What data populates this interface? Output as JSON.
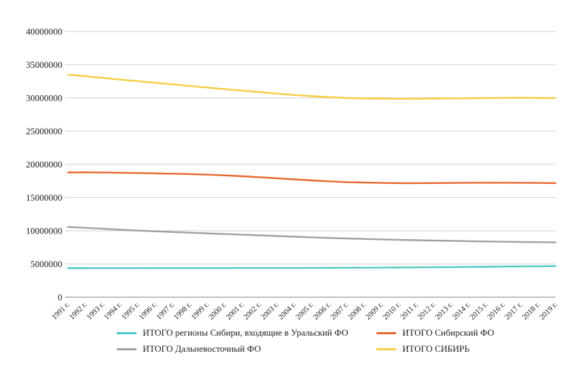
{
  "chart_data": {
    "type": "line",
    "title": "",
    "xlabel": "",
    "ylabel": "",
    "ylim": [
      0,
      40000000
    ],
    "grid": true,
    "legend_position": "bottom",
    "y_ticks": [
      0,
      5000000,
      10000000,
      15000000,
      20000000,
      25000000,
      30000000,
      35000000,
      40000000
    ],
    "y_tick_labels": [
      "0",
      "5000000",
      "10000000",
      "15000000",
      "20000000",
      "25000000",
      "30000000",
      "35000000",
      "40000000"
    ],
    "categories": [
      "1991 г.",
      "1992 г.",
      "1993 г.",
      "1994 г.",
      "1995 г.",
      "1996 г.",
      "1997 г.",
      "1998 г.",
      "1999 г.",
      "2000 г.",
      "2001 г.",
      "2002 г.",
      "2003 г.",
      "2004 г.",
      "2005 г.",
      "2006 г.",
      "2007 г.",
      "2008 г.",
      "2009 г.",
      "2010 г.",
      "2011 г.",
      "2012 г.",
      "2013 г.",
      "2014 г.",
      "2015 г.",
      "2016 г.",
      "2017 г.",
      "2018 г.",
      "2019 г."
    ],
    "series": [
      {
        "name": "ИТОГО регионы Сибири, входящие в Уральский ФО",
        "color": "#4EC9C5",
        "values": [
          4370000,
          4370000,
          4375000,
          4380000,
          4380000,
          4385000,
          4385000,
          4390000,
          4390000,
          4390000,
          4395000,
          4395000,
          4400000,
          4400000,
          4410000,
          4420000,
          4430000,
          4440000,
          4455000,
          4470000,
          4490000,
          4510000,
          4530000,
          4555000,
          4580000,
          4610000,
          4630000,
          4650000,
          4670000
        ]
      },
      {
        "name": "ИТОГО Сибирский ФО",
        "color": "#E8662D",
        "values": [
          18780000,
          18790000,
          18770000,
          18730000,
          18690000,
          18640000,
          18590000,
          18530000,
          18450000,
          18340000,
          18210000,
          18060000,
          17900000,
          17740000,
          17580000,
          17440000,
          17330000,
          17250000,
          17200000,
          17170000,
          17170000,
          17180000,
          17200000,
          17220000,
          17230000,
          17230000,
          17220000,
          17200000,
          17170000
        ]
      },
      {
        "name": "ИТОГО Дальневосточный ФО",
        "color": "#A0A0A0",
        "values": [
          10570000,
          10440000,
          10300000,
          10160000,
          10030000,
          9920000,
          9810000,
          9710000,
          9610000,
          9510000,
          9410000,
          9310000,
          9210000,
          9110000,
          9010000,
          8920000,
          8840000,
          8770000,
          8700000,
          8640000,
          8580000,
          8530000,
          8480000,
          8430000,
          8390000,
          8350000,
          8310000,
          8280000,
          8250000
        ]
      },
      {
        "name": "ИТОГО СИБИРЬ",
        "color": "#F9CB40",
        "values": [
          33500000,
          33260000,
          33010000,
          32760000,
          32520000,
          32280000,
          32040000,
          31800000,
          31560000,
          31330000,
          31100000,
          30870000,
          30650000,
          30440000,
          30260000,
          30110000,
          29990000,
          29920000,
          29890000,
          29870000,
          29880000,
          29900000,
          29930000,
          29960000,
          29990000,
          30010000,
          30020000,
          30000000,
          29980000
        ]
      }
    ],
    "colors": {
      "gridline": "#D8D8D8",
      "axis_line": "#9B9B9B",
      "tick_text": "#1A1A1A"
    }
  }
}
